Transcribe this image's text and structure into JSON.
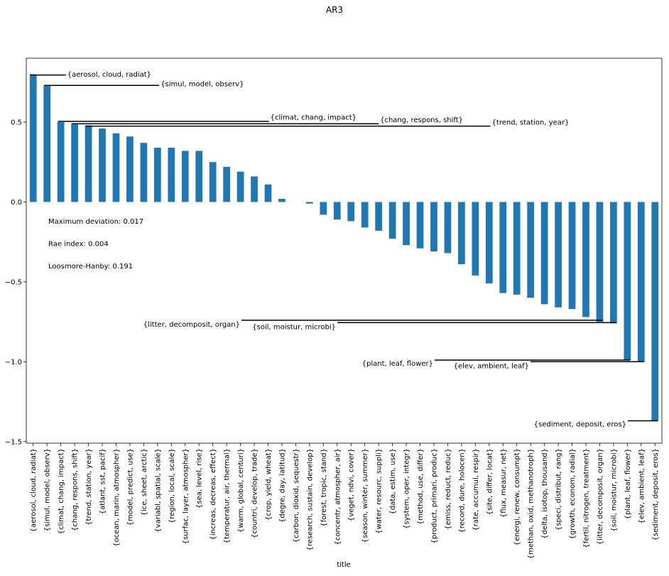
{
  "chart_data": {
    "type": "bar",
    "title": "AR3",
    "xlabel": "title",
    "ylabel": "",
    "ylim": [
      -1.51,
      0.9
    ],
    "yticks": [
      -1.5,
      -1.0,
      -0.5,
      0.0,
      0.5
    ],
    "ytick_labels": [
      "−1.5",
      "−1.0",
      "−0.5",
      "0.0",
      "0.5"
    ],
    "bar_color": "#1f77b4",
    "grid": false,
    "categories": [
      "{aerosol, cloud, radiat}",
      "{simul, model, observ}",
      "{climat, chang, impact}",
      "{chang, respons, shift}",
      "{trend, station, year}",
      "{atlant, sst, pacif}",
      "{ocean, marin, atmospher}",
      "{model, predict, use}",
      "{ice, sheet, arctic}",
      "{variabl, spatial, scale}",
      "{region, local, scale}",
      "{surfac, layer, atmospher}",
      "{sea, level, rise}",
      "{increas, decreas, effect}",
      "{temperatur, air, thermal}",
      "{warm, global, centuri}",
      "{countri, develop, trade}",
      "{crop, yield, wheat}",
      "{degre, day, latitud}",
      "{carbon, dioxid, sequestr}",
      "{research, sustain, develop}",
      "{forest, tropic, stand}",
      "{concentr, atmospher, air}",
      "{veget, ndvi, cover}",
      "{season, winter, summer}",
      "{water, resourc, suppli}",
      "{data, estim, use}",
      "{system, oper, integr}",
      "{method, use, differ}",
      "{product, primari, produc}",
      "{emiss, reduct, reduc}",
      "{record, dure, holocen}",
      "{rate, accumul, respir}",
      "{site, differ, locat}",
      "{flux, measur, net}",
      "{energi, renew, consumpt}",
      "{methan, oxid, methanotroph}",
      "{delta, isotop, thousand}",
      "{speci, distribut, rang}",
      "{growth, econom, radial}",
      "{fertil, nitrogen, treatment}",
      "{litter, decomposit, organ}",
      "{soil, moistur, microbi}",
      "{plant, leaf, flower}",
      "{elev, ambient, leaf}",
      "{sediment, deposit, eros}"
    ],
    "values": [
      0.8,
      0.73,
      0.5,
      0.49,
      0.48,
      0.46,
      0.43,
      0.41,
      0.37,
      0.34,
      0.34,
      0.32,
      0.32,
      0.25,
      0.22,
      0.19,
      0.16,
      0.11,
      0.02,
      0.0,
      -0.01,
      -0.08,
      -0.11,
      -0.12,
      -0.16,
      -0.18,
      -0.23,
      -0.27,
      -0.29,
      -0.31,
      -0.32,
      -0.39,
      -0.46,
      -0.51,
      -0.57,
      -0.58,
      -0.6,
      -0.64,
      -0.66,
      -0.67,
      -0.72,
      -0.75,
      -0.76,
      -0.99,
      -1.0,
      -1.37
    ],
    "stats": [
      "Maximum deviation: 0.017",
      "Rae index: 0.004",
      "Loosmore-Hanby: 0.191"
    ],
    "annotations": [
      {
        "bar": 0,
        "text": "{aerosol, cloud, radiat}",
        "side": "right",
        "label_y": 0.8,
        "line_y": 0.795
      },
      {
        "bar": 1,
        "text": "{simul, model, observ}",
        "side": "right",
        "label_y": 0.74,
        "line_y": 0.73
      },
      {
        "bar": 2,
        "text": "{climat, chang, impact}",
        "side": "right",
        "label_y": 0.53,
        "line_y": 0.505
      },
      {
        "bar": 3,
        "text": "{chang, respons, shift}",
        "side": "right",
        "label_y": 0.515,
        "line_y": 0.49
      },
      {
        "bar": 4,
        "text": "{trend, station, year}",
        "side": "right",
        "label_y": 0.5,
        "line_y": 0.475
      },
      {
        "bar": 41,
        "text": "{litter, decomposit, organ}",
        "side": "left",
        "label_y": -0.765,
        "line_y": -0.74
      },
      {
        "bar": 42,
        "text": "{soil, moistur, microbi}",
        "side": "left",
        "label_y": -0.78,
        "line_y": -0.755
      },
      {
        "bar": 43,
        "text": "{plant, leaf, flower}",
        "side": "left",
        "label_y": -1.01,
        "line_y": -0.99
      },
      {
        "bar": 44,
        "text": "{elev, ambient, leaf}",
        "side": "left",
        "label_y": -1.025,
        "line_y": -1.0
      },
      {
        "bar": 45,
        "text": "{sediment, deposit, eros}",
        "side": "left",
        "label_y": -1.39,
        "line_y": -1.37
      }
    ]
  }
}
